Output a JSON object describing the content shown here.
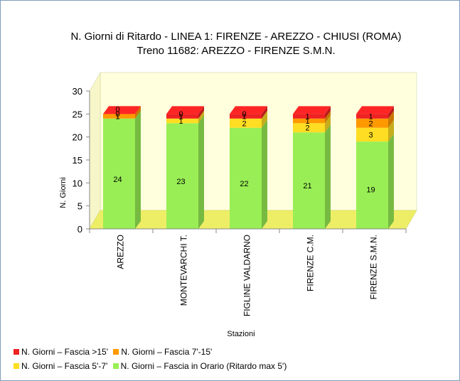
{
  "chart_data": {
    "type": "bar",
    "stacked": true,
    "three_d": true,
    "title": "N. Giorni di Ritardo - LINEA 1: FIRENZE - AREZZO - CHIUSI (ROMA)",
    "subtitle": "Treno 11682: AREZZO - FIRENZE S.M.N.",
    "xlabel": "Stazioni",
    "ylabel": "N. Giorni",
    "ylim": [
      0,
      30
    ],
    "yticks": [
      "0",
      "5",
      "10",
      "15",
      "20",
      "25",
      "30"
    ],
    "categories": [
      "AREZZO",
      "MONTEVARCHI T.",
      "FIGLINE VALDARNO",
      "FIRENZE C.M.",
      "FIRENZE S.M.N."
    ],
    "series": [
      {
        "name": "N. Giorni – Fascia in Orario (Ritardo max 5')",
        "color": "#99ee55",
        "values": [
          24,
          23,
          22,
          21,
          19
        ]
      },
      {
        "name": "N. Giorni – Fascia 5'-7'",
        "color": "#ffdd22",
        "values": [
          0,
          1,
          2,
          2,
          3
        ]
      },
      {
        "name": "N. Giorni – Fascia 7'-15'",
        "color": "#ff9900",
        "values": [
          1,
          0,
          0,
          1,
          2
        ]
      },
      {
        "name": "N. Giorni – Fascia >15'",
        "color": "#ee2222",
        "values": [
          0,
          1,
          1,
          1,
          1
        ]
      }
    ],
    "legend_placement": "bottom-left",
    "grid": false,
    "wall_color": "#ffffdd",
    "floor_color": "#eeee66"
  }
}
